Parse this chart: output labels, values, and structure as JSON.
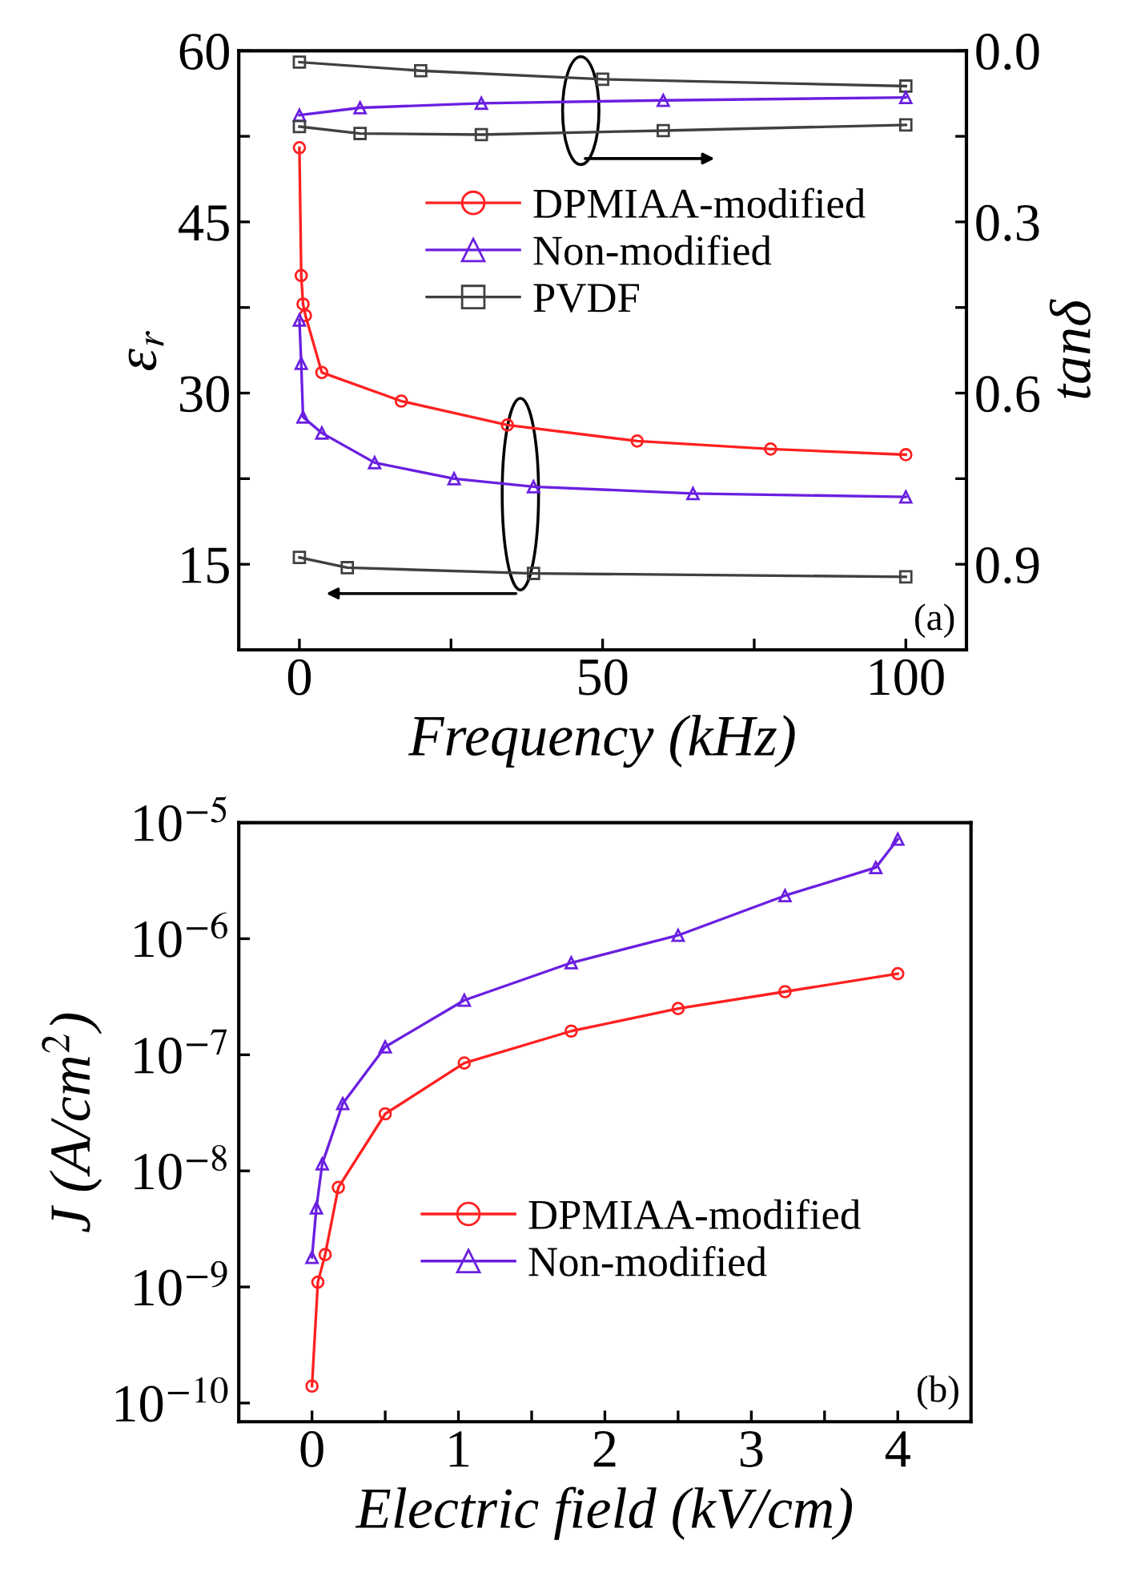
{
  "chart_data": [
    {
      "type": "line",
      "xlabel": "Frequency (kHz)",
      "ylabel": "ε$_{r}$",
      "y2label": "tanδ",
      "xlim": [
        -10,
        110
      ],
      "xticks": [
        0,
        {
          "value": 25,
          "label": null
        },
        50,
        {
          "value": 75,
          "label": null
        },
        100
      ],
      "ylim": [
        7.5,
        60
      ],
      "yticks": [
        {
          "value": 7.5,
          "label": null
        },
        15,
        {
          "value": 22.5,
          "label": null
        },
        30,
        {
          "value": 37.5,
          "label": null
        },
        45,
        {
          "value": 52.5,
          "label": null
        },
        60
      ],
      "y2lim": [
        1.05,
        0
      ],
      "y2ticks": [
        {
          "value": 0,
          "label": "0.0"
        },
        {
          "value": 0.15,
          "label": null
        },
        0.3,
        {
          "value": 0.45,
          "label": null
        },
        0.6,
        {
          "value": 0.75,
          "label": null
        },
        0.9
      ],
      "legend": "center",
      "grid": false,
      "line_style": "solid",
      "annotations": [
        "(a)"
      ],
      "series": [
        {
          "name": "DPMIAA-modified",
          "color": "#ff2020",
          "marker": "circle",
          "x": [
            0,
            0.3,
            0.6,
            1,
            3.7,
            16.8,
            34.3,
            55.7,
            77.7,
            100
          ],
          "values": [
            51.5,
            40.3,
            37.8,
            36.8,
            31.8,
            29.3,
            27.2,
            25.8,
            25.1,
            24.6
          ]
        },
        {
          "name": "Non-modified",
          "color": "#6a1fe0",
          "marker": "triangle",
          "x": [
            0,
            0.3,
            0.6,
            3.7,
            12.4,
            25.5,
            38.6,
            64.9,
            100
          ],
          "values": [
            36.4,
            32.6,
            27.9,
            26.5,
            23.9,
            22.5,
            21.8,
            21.2,
            20.9
          ]
        },
        {
          "name": "PVDF",
          "color": "#404040",
          "marker": "square",
          "x": [
            0,
            7.9,
            38.6,
            100
          ],
          "values": [
            15.6,
            14.7,
            14.2,
            13.9
          ]
        },
        {
          "color": "#404040",
          "marker": "square",
          "axis": "y2",
          "x": [
            0,
            20,
            50,
            100
          ],
          "values": [
            0.02,
            0.035,
            0.05,
            0.062
          ]
        },
        {
          "color": "#6a1fe0",
          "marker": "triangle",
          "axis": "y2",
          "x": [
            0,
            10,
            30,
            60,
            100
          ],
          "values": [
            0.113,
            0.1,
            0.092,
            0.087,
            0.082
          ]
        },
        {
          "color": "#404040",
          "marker": "square",
          "axis": "y2",
          "x": [
            0,
            10,
            30,
            60,
            100
          ],
          "values": [
            0.133,
            0.145,
            0.147,
            0.14,
            0.13
          ]
        }
      ]
    },
    {
      "type": "line",
      "xlabel": "Electric field (kV/cm)",
      "ylabel": "J (A/cm$^{2}$)",
      "log": "y",
      "xlim": [
        -0.5,
        4.5
      ],
      "xticks": [
        0,
        {
          "value": 0.5,
          "label": null
        },
        1,
        {
          "value": 1.5,
          "label": null
        },
        2,
        {
          "value": 2.5,
          "label": null
        },
        3,
        {
          "value": 3.5,
          "label": null
        },
        4
      ],
      "ylim": [
        6.9e-11,
        1e-05
      ],
      "yticks": [
        {
          "value": 1e-10,
          "label": "10$^{−10}$"
        },
        {
          "value": 1e-09,
          "label": "10$^{−9}$"
        },
        {
          "value": 1e-08,
          "label": "10$^{−8}$"
        },
        {
          "value": 1e-07,
          "label": "10$^{−7}$"
        },
        {
          "value": 1e-06,
          "label": "10$^{−6}$"
        },
        {
          "value": 1e-05,
          "label": "10$^{−5}$"
        }
      ],
      "legend": "bottom",
      "grid": false,
      "line_style": "solid",
      "annotations": [
        "(b)"
      ],
      "series": [
        {
          "name": "DPMIAA-modified",
          "color": "#ff2020",
          "marker": "circle",
          "x": [
            0,
            0.04,
            0.09,
            0.18,
            0.5,
            1.04,
            1.77,
            2.5,
            3.23,
            4.0
          ],
          "values": [
            1.4e-10,
            1.1e-09,
            1.9e-09,
            7.2e-09,
            3.1e-08,
            8.5e-08,
            1.6e-07,
            2.5e-07,
            3.5e-07,
            5e-07
          ]
        },
        {
          "name": "Non-modified",
          "color": "#6a1fe0",
          "marker": "triangle",
          "x": [
            0,
            0.03,
            0.07,
            0.21,
            0.5,
            1.04,
            1.77,
            2.5,
            3.23,
            3.85,
            4.0
          ],
          "values": [
            1.8e-09,
            4.8e-09,
            1.15e-08,
            3.8e-08,
            1.17e-07,
            2.95e-07,
            6.2e-07,
            1.07e-06,
            2.35e-06,
            4.1e-06,
            7.2e-06
          ]
        }
      ]
    }
  ]
}
